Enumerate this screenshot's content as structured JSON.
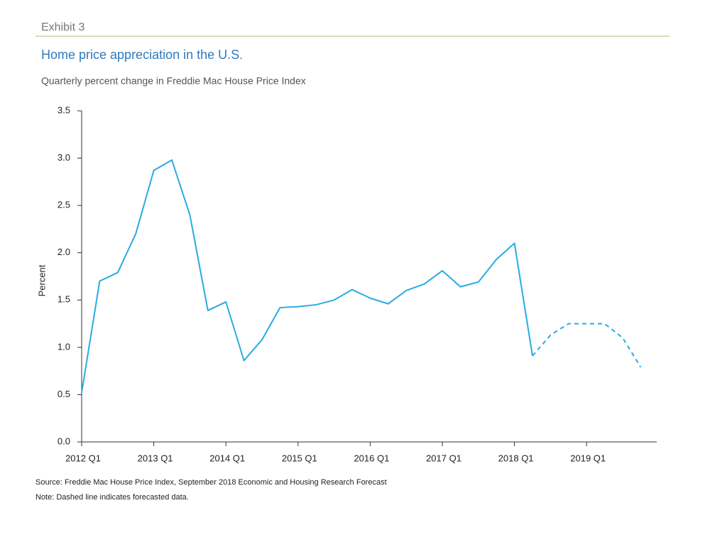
{
  "exhibit": "Exhibit 3",
  "chart_data": {
    "type": "line",
    "title": "Home price appreciation in the U.S.",
    "subtitle": "Quarterly percent change in Freddie Mac House Price Index",
    "y_label": "Percent",
    "categories": [
      "2012 Q1",
      null,
      null,
      null,
      "2013 Q1",
      null,
      null,
      null,
      "2014 Q1",
      null,
      null,
      null,
      "2015 Q1",
      null,
      null,
      null,
      "2016 Q1",
      null,
      null,
      null,
      "2017 Q1",
      null,
      null,
      null,
      "2018 Q1",
      null,
      null,
      null,
      "2019 Q1",
      null,
      null,
      null
    ],
    "series": [
      {
        "color": "#29abe2",
        "dashed": false,
        "values": [
          0.52,
          1.7,
          1.79,
          2.2,
          2.87,
          2.98,
          2.4,
          1.39,
          1.48,
          0.86,
          1.08,
          1.42,
          1.43,
          1.45,
          1.5,
          1.61,
          1.52,
          1.46,
          1.6,
          1.67,
          1.81,
          1.64,
          1.69,
          1.93,
          2.1,
          0.91,
          null,
          null,
          null,
          null,
          null,
          null
        ]
      },
      {
        "color": "#29abe2",
        "dashed": true,
        "values": [
          null,
          null,
          null,
          null,
          null,
          null,
          null,
          null,
          null,
          null,
          null,
          null,
          null,
          null,
          null,
          null,
          null,
          null,
          null,
          null,
          null,
          null,
          null,
          null,
          null,
          0.91,
          1.13,
          1.25,
          1.25,
          1.25,
          1.1,
          0.79
        ]
      }
    ],
    "ylim": [
      0,
      3.5
    ],
    "yticks": [
      {
        "value": 0,
        "label": "0.0"
      },
      {
        "value": 0.5,
        "label": "0.5"
      },
      {
        "value": 1,
        "label": "1.0"
      },
      {
        "value": 1.5,
        "label": "1.5"
      },
      {
        "value": 2,
        "label": "2.0"
      },
      {
        "value": 2.5,
        "label": "2.5"
      },
      {
        "value": 3,
        "label": "3.0"
      },
      {
        "value": 3.5,
        "label": "3.5"
      }
    ],
    "grid": false
  },
  "source": "Source: Freddie Mac House Price Index, September 2018 Economic and Housing Research Forecast",
  "note": "Note: Dashed line indicates forecasted data."
}
